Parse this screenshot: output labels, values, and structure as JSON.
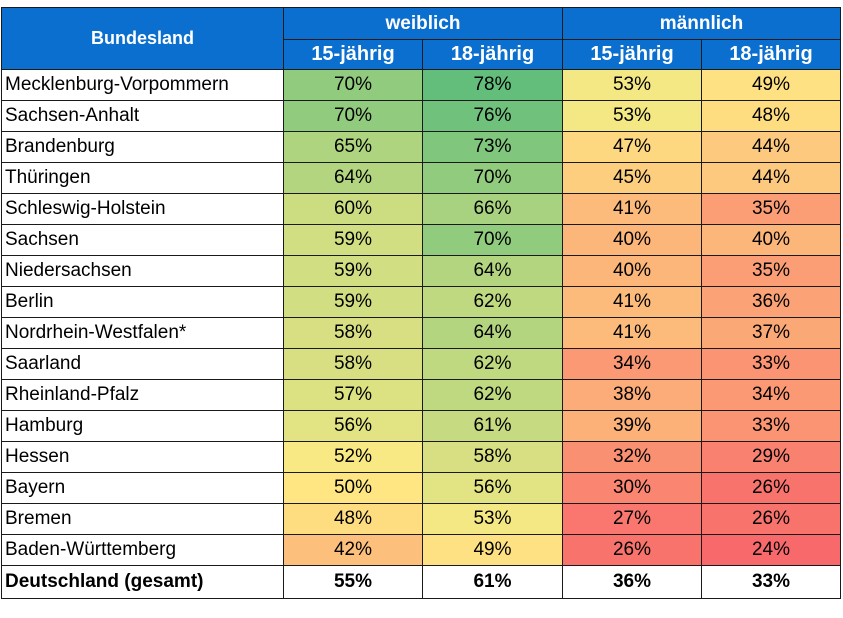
{
  "header": {
    "col_state": "Bundesland",
    "group_female": "weiblich",
    "group_male": "männlich",
    "age15": "15-jährig",
    "age18": "18-jährig"
  },
  "colors": {
    "header_bg": "#0b6fd0",
    "scale_low": "#f8696b",
    "scale_mid": "#ffeb84",
    "scale_high": "#63be7b"
  },
  "rows": [
    {
      "state": "Mecklenburg-Vorpommern",
      "w15": "70%",
      "w18": "78%",
      "m15": "53%",
      "m18": "49%"
    },
    {
      "state": "Sachsen-Anhalt",
      "w15": "70%",
      "w18": "76%",
      "m15": "53%",
      "m18": "48%"
    },
    {
      "state": "Brandenburg",
      "w15": "65%",
      "w18": "73%",
      "m15": "47%",
      "m18": "44%"
    },
    {
      "state": "Thüringen",
      "w15": "64%",
      "w18": "70%",
      "m15": "45%",
      "m18": "44%"
    },
    {
      "state": "Schleswig-Holstein",
      "w15": "60%",
      "w18": "66%",
      "m15": "41%",
      "m18": "35%"
    },
    {
      "state": "Sachsen",
      "w15": "59%",
      "w18": "70%",
      "m15": "40%",
      "m18": "40%"
    },
    {
      "state": "Niedersachsen",
      "w15": "59%",
      "w18": "64%",
      "m15": "40%",
      "m18": "35%"
    },
    {
      "state": "Berlin",
      "w15": "59%",
      "w18": "62%",
      "m15": "41%",
      "m18": "36%"
    },
    {
      "state": "Nordrhein-Westfalen*",
      "w15": "58%",
      "w18": "64%",
      "m15": "41%",
      "m18": "37%"
    },
    {
      "state": "Saarland",
      "w15": "58%",
      "w18": "62%",
      "m15": "34%",
      "m18": "33%"
    },
    {
      "state": "Rheinland-Pfalz",
      "w15": "57%",
      "w18": "62%",
      "m15": "38%",
      "m18": "34%"
    },
    {
      "state": "Hamburg",
      "w15": "56%",
      "w18": "61%",
      "m15": "39%",
      "m18": "33%"
    },
    {
      "state": "Hessen",
      "w15": "52%",
      "w18": "58%",
      "m15": "32%",
      "m18": "29%"
    },
    {
      "state": "Bayern",
      "w15": "50%",
      "w18": "56%",
      "m15": "30%",
      "m18": "26%"
    },
    {
      "state": "Bremen",
      "w15": "48%",
      "w18": "53%",
      "m15": "27%",
      "m18": "26%"
    },
    {
      "state": "Baden-Württemberg",
      "w15": "42%",
      "w18": "49%",
      "m15": "26%",
      "m18": "24%"
    }
  ],
  "total": {
    "state": "Deutschland (gesamt)",
    "w15": "55%",
    "w18": "61%",
    "m15": "36%",
    "m18": "33%"
  }
}
